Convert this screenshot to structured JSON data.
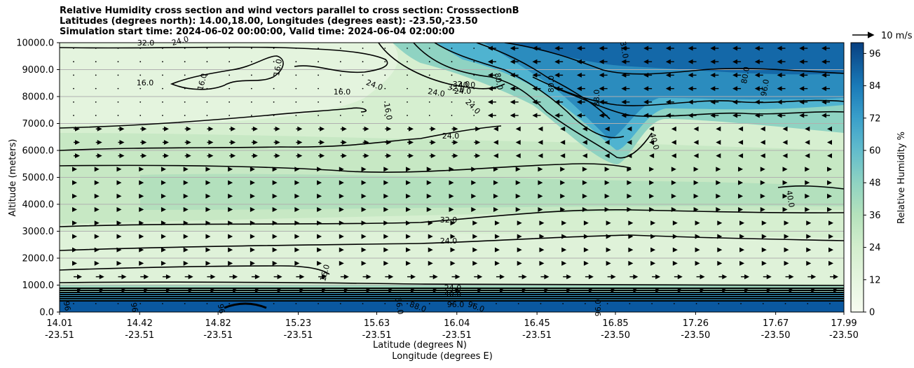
{
  "chart_data": {
    "type": "contour",
    "title_lines": [
      "Relative Humidity cross section and wind vectors parallel to cross section: CrosssectionB",
      "Latitudes (degrees north): 14.00,18.00, Longitudes (degrees east): -23.50,-23.50",
      "Simulation start time: 2024-06-02 00:00:00, Valid time: 2024-06-04 02:00:00"
    ],
    "ylabel": "Altitude (meters)",
    "xlabel_lat": "Latitude (degrees N)",
    "xlabel_lon": "Longitude (degrees E)",
    "ylim": [
      0,
      10000
    ],
    "y_ticks": [
      "0.0",
      "1000.0",
      "2000.0",
      "3000.0",
      "4000.0",
      "5000.0",
      "6000.0",
      "7000.0",
      "8000.0",
      "9000.0",
      "10000.0"
    ],
    "x_ticks": [
      {
        "lat": "14.01",
        "lon": "-23.51"
      },
      {
        "lat": "14.42",
        "lon": "-23.51"
      },
      {
        "lat": "14.82",
        "lon": "-23.51"
      },
      {
        "lat": "15.23",
        "lon": "-23.51"
      },
      {
        "lat": "15.63",
        "lon": "-23.51"
      },
      {
        "lat": "16.04",
        "lon": "-23.51"
      },
      {
        "lat": "16.45",
        "lon": "-23.51"
      },
      {
        "lat": "16.85",
        "lon": "-23.50"
      },
      {
        "lat": "17.26",
        "lon": "-23.50"
      },
      {
        "lat": "17.67",
        "lon": "-23.50"
      },
      {
        "lat": "17.99",
        "lon": "-23.50"
      }
    ],
    "colorbar": {
      "label": "Relative Humidity %",
      "ticks": [
        "0",
        "12",
        "24",
        "36",
        "48",
        "60",
        "72",
        "84",
        "96"
      ],
      "range": [
        0,
        100
      ],
      "colormap": [
        "#f7fcf0",
        "#e0f3db",
        "#ccebc5",
        "#a8ddb5",
        "#7bccc4",
        "#4eb3d3",
        "#2b8cbe",
        "#0868ac",
        "#084081"
      ]
    },
    "grid": "horizontal",
    "quiver_key": "10 m/s",
    "contour_labels": [
      "32.0",
      "24.0",
      "16.0",
      "16.0",
      "16.0",
      "16.0",
      "24.0",
      "24.0",
      "32.0",
      "32.0",
      "24.0",
      "40.0",
      "16.0",
      "24.0",
      "24.0",
      "32.0",
      "24.0",
      "16.0",
      "32.0",
      "80.0",
      "88.0",
      "40.0",
      "80.0",
      "40.0",
      "96",
      "96",
      "96",
      "96.0",
      "88.0",
      "96.0",
      "96.0",
      "56.0",
      "24.0",
      "40.0",
      "80.0",
      "96.0"
    ]
  }
}
